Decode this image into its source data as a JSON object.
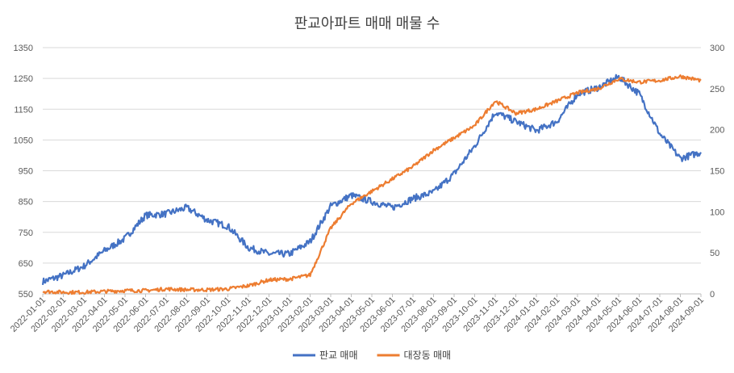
{
  "chart_data": {
    "type": "line",
    "title": "판교아파트 매매 매물 수",
    "x_tick_labels": [
      "2022-01-01",
      "2022-02-01",
      "2022-03-01",
      "2022-04-01",
      "2022-05-01",
      "2022-06-01",
      "2022-07-01",
      "2022-08-01",
      "2022-09-01",
      "2022-10-01",
      "2022-11-01",
      "2022-12-01",
      "2023-01-01",
      "2023-02-01",
      "2023-03-01",
      "2023-04-01",
      "2023-05-01",
      "2023-06-01",
      "2023-07-01",
      "2023-08-01",
      "2023-09-01",
      "2023-10-01",
      "2023-11-01",
      "2023-12-01",
      "2024-01-01",
      "2024-02-01",
      "2024-03-01",
      "2024-04-01",
      "2024-05-01",
      "2024-06-01",
      "2024-07-01",
      "2024-08-01",
      "2024-09-01"
    ],
    "y_left": {
      "min": 550,
      "max": 1350,
      "ticks": [
        "1350",
        "1250",
        "1150",
        "1050",
        "950",
        "850",
        "750",
        "650",
        "550"
      ]
    },
    "y_right": {
      "min": 0,
      "max": 300,
      "ticks": [
        "300",
        "250",
        "200",
        "150",
        "100",
        "50",
        "0"
      ]
    },
    "grid": true,
    "legend_position": "bottom",
    "series": [
      {
        "name": "판교 매매",
        "axis": "left",
        "color": "#4472C4",
        "x": [
          "2022-01-01",
          "2022-02-01",
          "2022-03-01",
          "2022-04-01",
          "2022-05-01",
          "2022-06-01",
          "2022-07-01",
          "2022-08-01",
          "2022-09-01",
          "2022-10-01",
          "2022-11-01",
          "2022-12-01",
          "2023-01-01",
          "2023-02-01",
          "2023-03-01",
          "2023-04-01",
          "2023-05-01",
          "2023-06-01",
          "2023-07-01",
          "2023-08-01",
          "2023-09-01",
          "2023-10-01",
          "2023-11-01",
          "2023-12-01",
          "2024-01-01",
          "2024-02-01",
          "2024-03-01",
          "2024-04-01",
          "2024-05-01",
          "2024-06-01",
          "2024-07-01",
          "2024-08-01",
          "2024-09-01"
        ],
        "values": [
          590,
          610,
          640,
          690,
          730,
          805,
          810,
          830,
          790,
          770,
          700,
          680,
          680,
          720,
          835,
          870,
          850,
          830,
          860,
          880,
          940,
          1030,
          1140,
          1110,
          1080,
          1110,
          1200,
          1220,
          1255,
          1200,
          1070,
          990,
          1010
        ]
      },
      {
        "name": "대장동 매매",
        "axis": "right",
        "color": "#ED7D31",
        "x": [
          "2022-01-01",
          "2022-02-01",
          "2022-03-01",
          "2022-04-01",
          "2022-05-01",
          "2022-06-01",
          "2022-07-01",
          "2022-08-01",
          "2022-09-01",
          "2022-10-01",
          "2022-11-01",
          "2022-12-01",
          "2023-01-01",
          "2023-02-01",
          "2023-03-01",
          "2023-04-01",
          "2023-05-01",
          "2023-06-01",
          "2023-07-01",
          "2023-08-01",
          "2023-09-01",
          "2023-10-01",
          "2023-11-01",
          "2023-12-01",
          "2024-01-01",
          "2024-02-01",
          "2024-03-01",
          "2024-04-01",
          "2024-05-01",
          "2024-06-01",
          "2024-07-01",
          "2024-08-01",
          "2024-09-01"
        ],
        "values": [
          3,
          2,
          2,
          3,
          4,
          4,
          6,
          5,
          5,
          6,
          10,
          17,
          18,
          23,
          80,
          110,
          125,
          140,
          155,
          175,
          190,
          205,
          235,
          220,
          225,
          235,
          245,
          250,
          262,
          258,
          260,
          265,
          260
        ]
      }
    ]
  }
}
